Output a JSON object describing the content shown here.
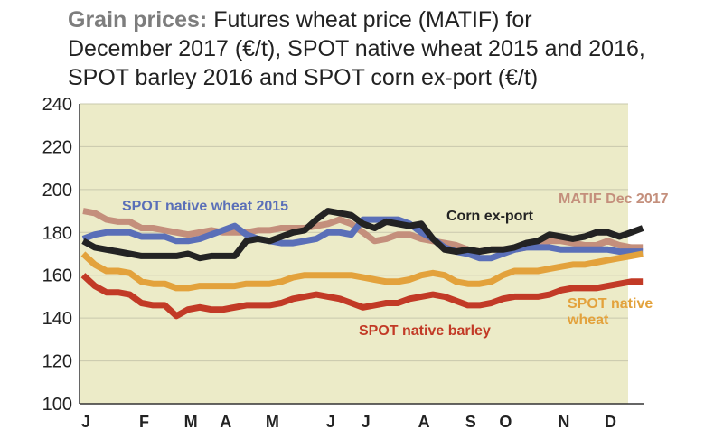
{
  "chart_data": {
    "type": "line",
    "title": {
      "lead": "Grain prices:",
      "lines": [
        "Futures wheat price (MATIF) for",
        "December 2017 (€/t), SPOT native wheat 2015 and 2016,",
        "SPOT barley 2016 and SPOT corn ex-port (€/t)"
      ]
    },
    "categories": [
      "J",
      null,
      null,
      null,
      null,
      "F",
      null,
      null,
      null,
      "M",
      null,
      null,
      "A",
      null,
      null,
      null,
      "M",
      null,
      null,
      null,
      null,
      "J",
      null,
      null,
      "J",
      null,
      null,
      null,
      null,
      "A",
      null,
      null,
      null,
      "S",
      null,
      null,
      "O",
      null,
      null,
      null,
      null,
      "N",
      null,
      null,
      null,
      "D",
      null,
      null,
      null
    ],
    "ylim": [
      100,
      240
    ],
    "yticks": [
      100,
      120,
      140,
      160,
      180,
      200,
      220,
      240
    ],
    "grid": true,
    "series": [
      {
        "name": "MATIF Dec 2017",
        "color": "#c48f7c",
        "values": [
          190,
          189,
          186,
          185,
          185,
          182,
          182,
          181,
          180,
          179,
          180,
          181,
          180,
          180,
          180,
          181,
          181,
          182,
          182,
          182,
          183,
          184,
          186,
          184,
          180,
          176,
          177,
          179,
          179,
          177,
          176,
          175,
          174,
          172,
          171,
          172,
          172,
          172,
          173,
          174,
          176,
          176,
          175,
          174,
          174,
          176,
          174,
          173,
          173
        ]
      },
      {
        "name": "SPOT native wheat 2015",
        "color": "#5a6fb8",
        "values": [
          177,
          179,
          180,
          180,
          180,
          178,
          178,
          178,
          176,
          176,
          177,
          179,
          181,
          183,
          179,
          177,
          176,
          175,
          175,
          176,
          177,
          180,
          180,
          179,
          186,
          186,
          186,
          186,
          184,
          180,
          177,
          173,
          171,
          170,
          168,
          168,
          170,
          172,
          173,
          173,
          173,
          172,
          172,
          172,
          172,
          172,
          171,
          171,
          171
        ]
      },
      {
        "name": "SPOT native wheat",
        "color": "#e3a23c",
        "values": [
          170,
          165,
          162,
          162,
          161,
          157,
          156,
          156,
          154,
          154,
          155,
          155,
          155,
          155,
          156,
          156,
          156,
          157,
          159,
          160,
          160,
          160,
          160,
          160,
          159,
          158,
          157,
          157,
          158,
          160,
          161,
          160,
          157,
          156,
          156,
          157,
          160,
          162,
          162,
          162,
          163,
          164,
          165,
          165,
          166,
          167,
          168,
          169,
          170
        ]
      },
      {
        "name": "SPOT native barley",
        "color": "#c23a26",
        "values": [
          160,
          155,
          152,
          152,
          151,
          147,
          146,
          146,
          141,
          144,
          145,
          144,
          144,
          145,
          146,
          146,
          146,
          147,
          149,
          150,
          151,
          150,
          149,
          147,
          145,
          146,
          147,
          147,
          149,
          150,
          151,
          150,
          148,
          146,
          146,
          147,
          149,
          150,
          150,
          150,
          151,
          153,
          154,
          154,
          154,
          155,
          156,
          157,
          157
        ]
      },
      {
        "name": "Corn ex-port",
        "color": "#232323",
        "values": [
          176,
          173,
          172,
          171,
          170,
          169,
          169,
          169,
          169,
          170,
          168,
          169,
          169,
          169,
          176,
          177,
          176,
          178,
          180,
          181,
          186,
          190,
          189,
          188,
          184,
          182,
          185,
          184,
          183,
          184,
          177,
          172,
          171,
          172,
          171,
          172,
          172,
          173,
          175,
          176,
          179,
          178,
          177,
          178,
          180,
          180,
          178,
          180,
          182
        ]
      }
    ]
  }
}
